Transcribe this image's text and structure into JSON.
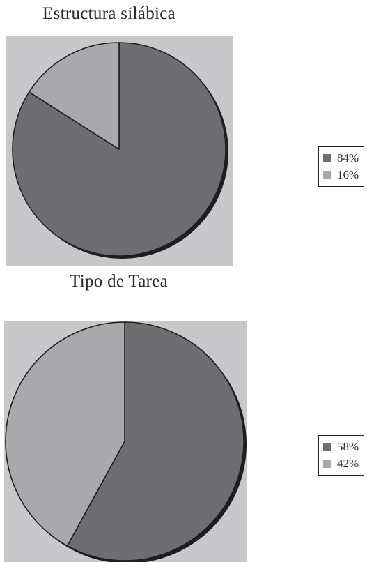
{
  "chart_data": [
    {
      "type": "pie",
      "title": "Estructura silábica",
      "slices": [
        {
          "label": "84%",
          "value": 84,
          "color": "#6e6e70"
        },
        {
          "label": "16%",
          "value": 16,
          "color": "#a9a9ab"
        }
      ],
      "start_angle_deg": 0,
      "direction": "clockwise",
      "plot_background": "#c8c8ca",
      "legend_position": "right"
    },
    {
      "type": "pie",
      "title": "Tipo de Tarea",
      "slices": [
        {
          "label": "58%",
          "value": 58,
          "color": "#6e6e70"
        },
        {
          "label": "42%",
          "value": 42,
          "color": "#a9a9ab"
        }
      ],
      "start_angle_deg": 0,
      "direction": "clockwise",
      "plot_background": "#c8c8ca",
      "legend_position": "right"
    }
  ]
}
